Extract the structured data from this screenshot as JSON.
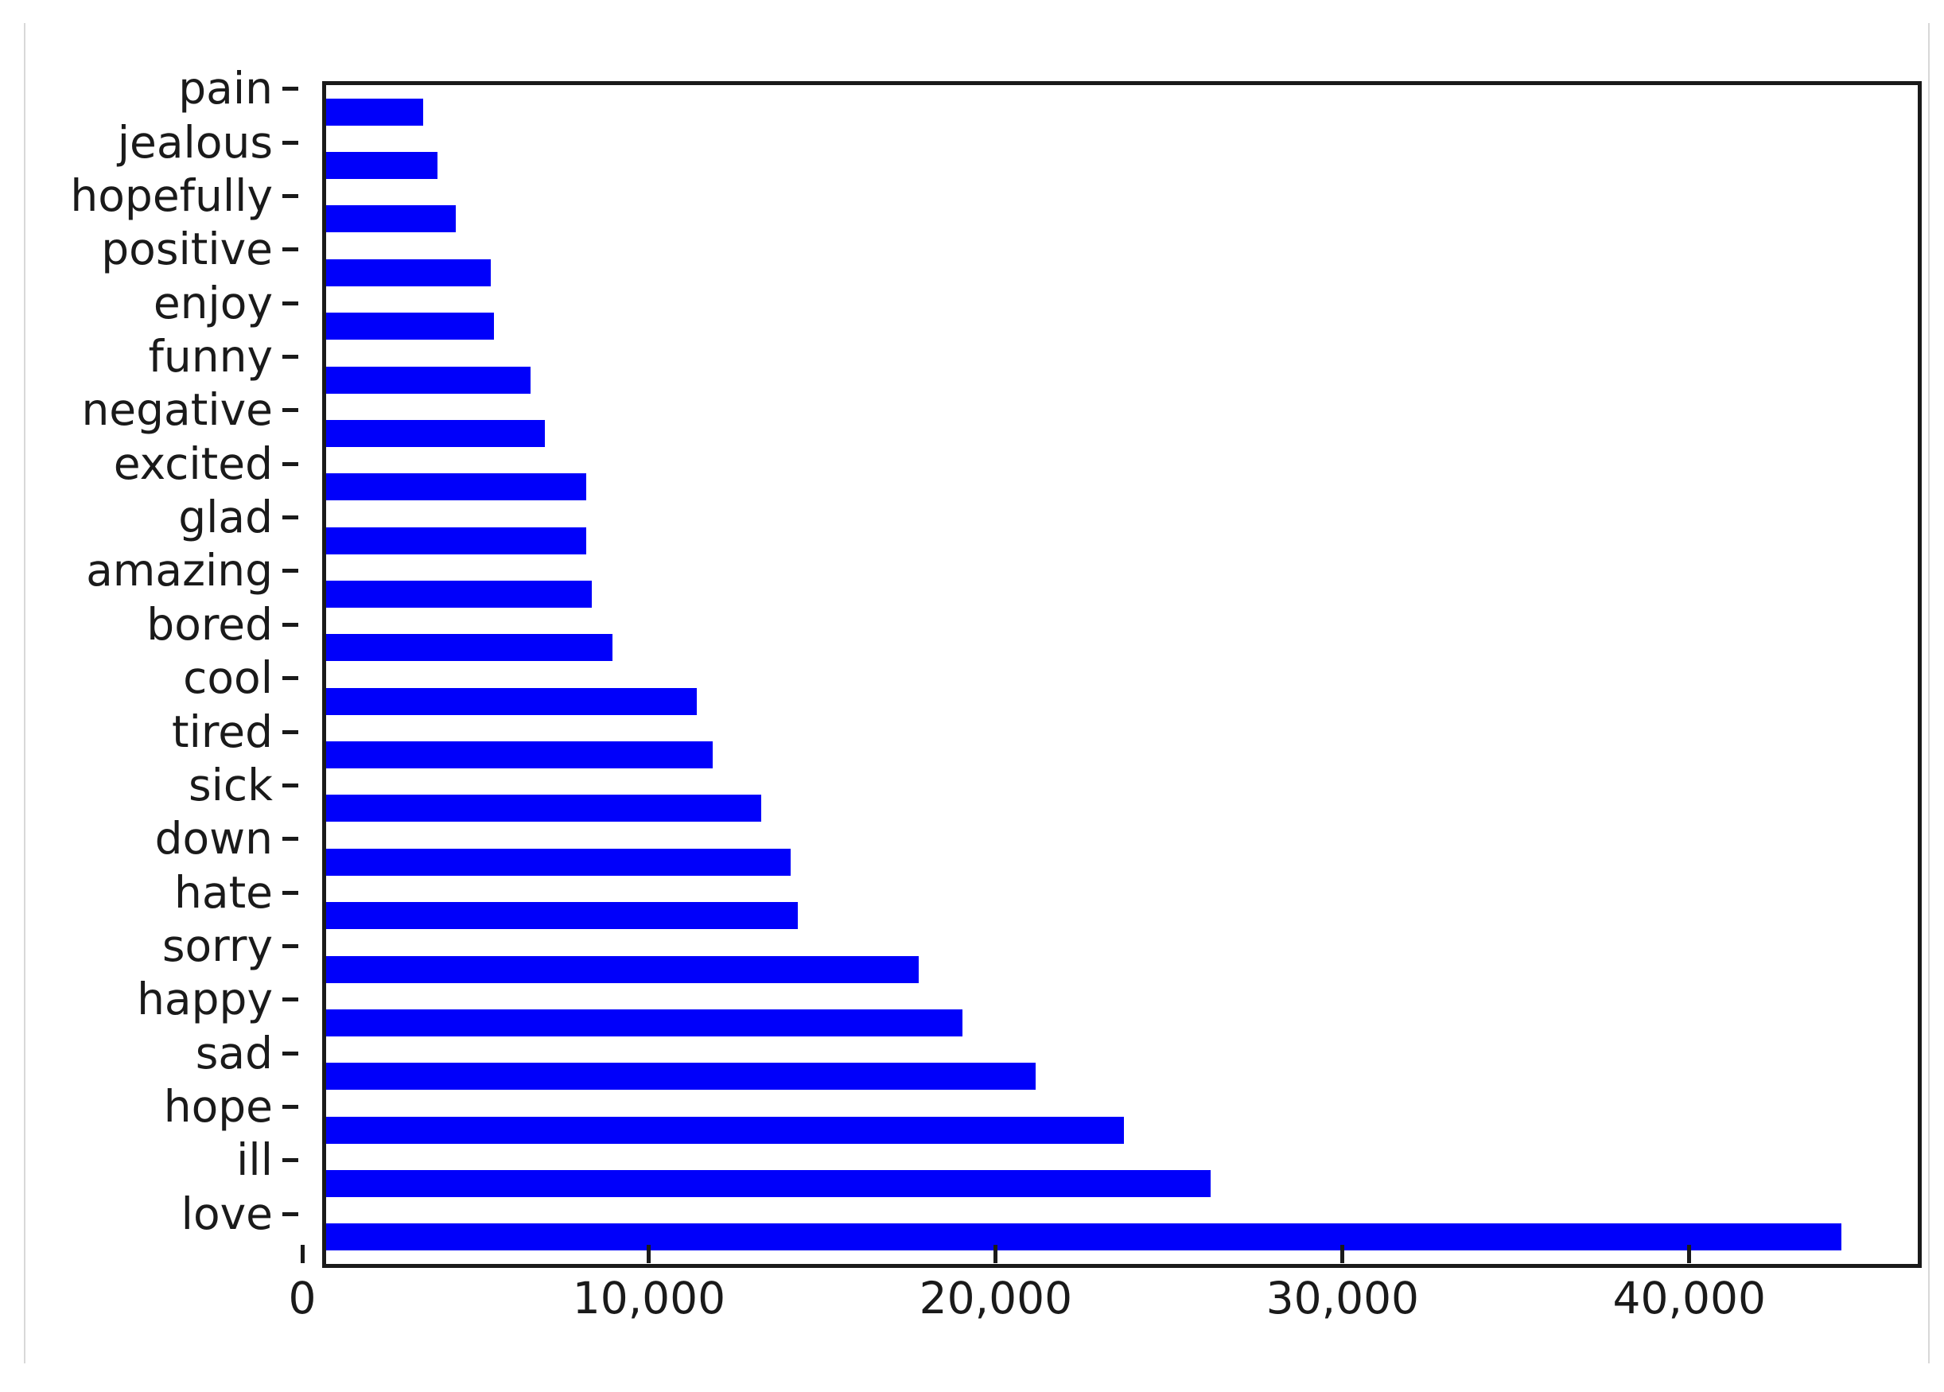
{
  "page": {
    "background": "#ffffff",
    "card_border_color": "#d8d8d8"
  },
  "chart_data": {
    "type": "bar",
    "orientation": "horizontal",
    "title": "",
    "xlabel": "",
    "ylabel": "",
    "grid": false,
    "legend": null,
    "bar_color": "#0000fa",
    "frame_color": "#1a1a1a",
    "xlim": [
      0,
      45900
    ],
    "x_tick_values": [
      0,
      10000,
      20000,
      30000,
      40000
    ],
    "x_tick_labels": [
      "0",
      "10,000",
      "20,000",
      "30,000",
      "40,000"
    ],
    "categories": [
      "pain",
      "jealous",
      "hopefully",
      "positive",
      "enjoy",
      "funny",
      "negative",
      "excited",
      "glad",
      "amazing",
      "bored",
      "cool",
      "tired",
      "sick",
      "down",
      "hate",
      "sorry",
      "happy",
      "sad",
      "hope",
      "ill",
      "love"
    ],
    "values": [
      2800,
      3200,
      3750,
      4750,
      4850,
      5900,
      6300,
      7500,
      7500,
      7650,
      8250,
      10700,
      11150,
      12550,
      13400,
      13600,
      17100,
      18350,
      20450,
      23000,
      25500,
      43700
    ]
  }
}
